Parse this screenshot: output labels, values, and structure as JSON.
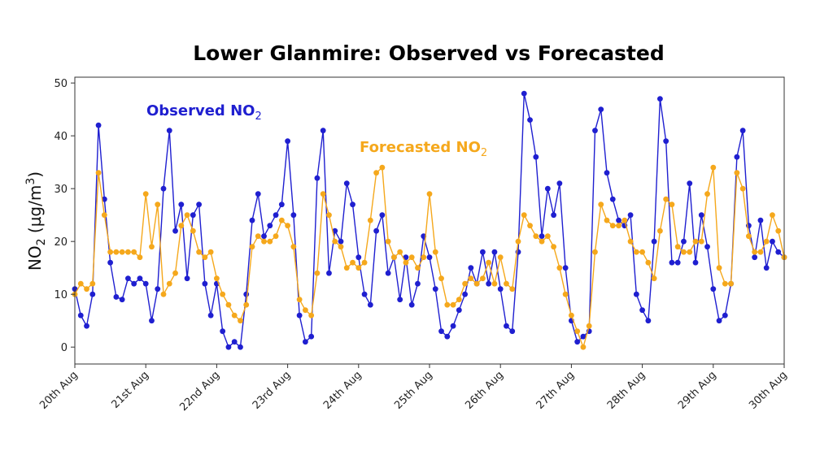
{
  "chart_data": {
    "type": "line",
    "title": "Lower Glanmire: Observed vs Forecasted",
    "xlabel": "",
    "ylabel_main": "NO",
    "ylabel_sub": "2",
    "ylabel_unit": " (µg/m",
    "ylabel_sup": "3",
    "ylabel_close": ")",
    "ylim": [
      -3.2,
      51.1
    ],
    "yticks": [
      0,
      10,
      20,
      30,
      40,
      50
    ],
    "x_unit": "days since 20th Aug (2-hourly samples)",
    "xlim": [
      0,
      10
    ],
    "xtick_labels": [
      "20th Aug",
      "21st Aug",
      "22nd Aug",
      "23rd Aug",
      "24th Aug",
      "25th Aug",
      "26th Aug",
      "27th Aug",
      "28th Aug",
      "29th Aug",
      "30th Aug"
    ],
    "samples_per_day": 12,
    "series": [
      {
        "name": "Observed NO2",
        "label_main": "Observed NO",
        "label_sub": "2",
        "color": "#1f1fd0",
        "values": [
          11,
          6,
          4,
          10,
          42,
          28,
          16,
          9.5,
          9,
          13,
          12,
          13,
          12,
          5,
          11,
          30,
          41,
          22,
          27,
          13,
          25,
          27,
          12,
          6,
          12,
          3,
          0,
          1,
          0,
          10,
          24,
          29,
          21,
          23,
          25,
          27,
          39,
          25,
          6,
          1,
          2,
          32,
          41,
          14,
          22,
          20,
          31,
          27,
          17,
          10,
          8,
          22,
          25,
          14,
          17,
          9,
          17,
          8,
          12,
          21,
          17,
          11,
          3,
          2,
          4,
          7,
          10,
          15,
          12,
          18,
          12,
          18,
          11,
          4,
          3,
          18,
          48,
          43,
          36,
          21,
          30,
          25,
          31,
          15,
          5,
          1,
          2,
          3,
          41,
          45,
          33,
          28,
          24,
          23,
          25,
          10,
          7,
          5,
          20,
          47,
          39,
          16,
          16,
          20,
          31,
          16,
          25,
          19,
          11,
          5,
          6,
          12,
          36,
          41,
          23,
          17,
          24,
          15,
          20,
          18,
          17
        ]
      },
      {
        "name": "Forecasted NO2",
        "label_main": "Forecasted NO",
        "label_sub": "2",
        "color": "#f5a81c",
        "values": [
          10,
          12,
          11,
          12,
          33,
          25,
          18,
          18,
          18,
          18,
          18,
          17,
          29,
          19,
          27,
          10,
          12,
          14,
          23,
          25,
          22,
          18,
          17,
          18,
          13,
          10,
          8,
          6,
          5,
          8,
          19,
          21,
          20,
          20,
          21,
          24,
          23,
          19,
          9,
          7,
          6,
          14,
          29,
          25,
          20,
          19,
          15,
          16,
          15,
          16,
          24,
          33,
          34,
          20,
          17,
          18,
          16,
          17,
          15,
          17,
          29,
          18,
          13,
          8,
          8,
          9,
          12,
          13,
          12,
          13,
          16,
          12,
          17,
          12,
          11,
          20,
          25,
          23,
          21,
          20,
          21,
          19,
          15,
          10,
          6,
          3,
          0,
          4,
          18,
          27,
          24,
          23,
          23,
          24,
          20,
          18,
          18,
          16,
          13,
          22,
          28,
          27,
          19,
          18,
          18,
          20,
          20,
          29,
          34,
          15,
          12,
          12,
          33,
          30,
          21,
          18,
          18,
          20,
          25,
          22,
          17
        ]
      }
    ],
    "grid": false,
    "legend": "inline text annotations near top-left and top-center"
  }
}
